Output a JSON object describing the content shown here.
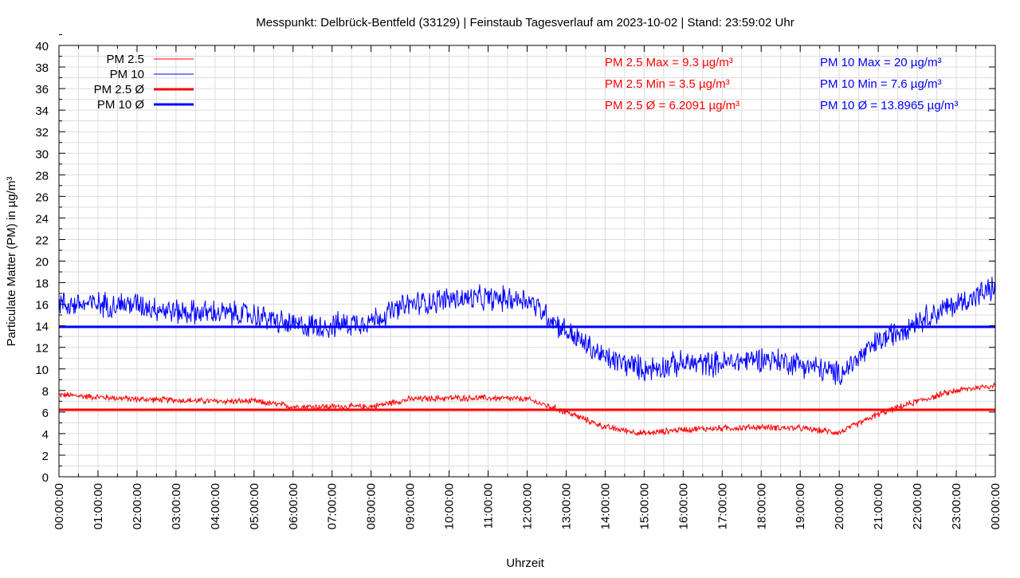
{
  "chart_data": {
    "type": "line",
    "title": "Messpunkt: Delbrück-Bentfeld (33129) | Feinstaub Tagesverlauf am 2023-10-02 | Stand: 23:59:02 Uhr",
    "xlabel": "Uhrzeit",
    "ylabel": "Particulate Matter (PM) in µg/m³",
    "ylim": [
      0,
      40
    ],
    "xlim_hours": [
      0,
      24
    ],
    "yticks": [
      "0",
      "2",
      "4",
      "6",
      "8",
      "10",
      "12",
      "14",
      "16",
      "18",
      "20",
      "22",
      "24",
      "26",
      "28",
      "30",
      "32",
      "34",
      "36",
      "38",
      "40"
    ],
    "xticks": [
      "00:00:00",
      "01:00:00",
      "02:00:00",
      "03:00:00",
      "04:00:00",
      "05:00:00",
      "06:00:00",
      "07:00:00",
      "08:00:00",
      "09:00:00",
      "10:00:00",
      "11:00:00",
      "12:00:00",
      "13:00:00",
      "14:00:00",
      "15:00:00",
      "16:00:00",
      "17:00:00",
      "18:00:00",
      "19:00:00",
      "20:00:00",
      "21:00:00",
      "22:00:00",
      "23:00:00",
      "00:00:00"
    ],
    "grid": true,
    "legend_position": "top-left",
    "legend": [
      {
        "label": "PM 2.5",
        "color": "#ff0000",
        "style": "thin"
      },
      {
        "label": "PM 10",
        "color": "#0000ff",
        "style": "thin"
      },
      {
        "label": "PM 2.5 Ø",
        "color": "#ff0000",
        "style": "thick"
      },
      {
        "label": "PM 10 Ø",
        "color": "#0000ff",
        "style": "thick"
      }
    ],
    "series": [
      {
        "name": "PM 2.5",
        "color": "#ff0000",
        "hourly_x": [
          0,
          1,
          2,
          3,
          4,
          5,
          6,
          7,
          8,
          9,
          10,
          11,
          12,
          13,
          14,
          15,
          16,
          17,
          18,
          19,
          20,
          21,
          22,
          23,
          24
        ],
        "values": [
          7.6,
          7.4,
          7.2,
          7.1,
          7.0,
          7.0,
          6.5,
          6.5,
          6.5,
          7.2,
          7.3,
          7.3,
          7.2,
          6.0,
          4.6,
          4.0,
          4.4,
          4.5,
          4.6,
          4.5,
          4.1,
          5.8,
          7.0,
          8.0,
          8.5
        ],
        "noise": 0.35
      },
      {
        "name": "PM 10",
        "color": "#0000ff",
        "hourly_x": [
          0,
          1,
          2,
          3,
          4,
          5,
          6,
          7,
          8,
          9,
          10,
          11,
          12,
          13,
          14,
          15,
          16,
          17,
          18,
          19,
          20,
          21,
          22,
          23,
          24
        ],
        "values": [
          16,
          16,
          16,
          15.3,
          15.2,
          15,
          14,
          14,
          14.5,
          16,
          16.5,
          16.5,
          16.5,
          13.5,
          11,
          10,
          10.5,
          10.5,
          11,
          10.5,
          9.5,
          12.5,
          14.5,
          16,
          17.5
        ],
        "noise": 1.4
      }
    ],
    "averages": [
      {
        "name": "PM 2.5 Ø",
        "value": 6.2091,
        "color": "#ff0000"
      },
      {
        "name": "PM 10 Ø",
        "value": 13.8965,
        "color": "#0000ff"
      }
    ],
    "annotations": {
      "pm25": [
        "PM 2.5 Max = 9.3 µg/m³",
        "PM 2.5 Min = 3.5 µg/m³",
        "PM 2.5 Ø = 6.2091 µg/m³"
      ],
      "pm10": [
        "PM 10 Max = 20 µg/m³",
        "PM 10 Min = 7.6 µg/m³",
        "PM 10 Ø = 13.8965 µg/m³"
      ]
    }
  }
}
